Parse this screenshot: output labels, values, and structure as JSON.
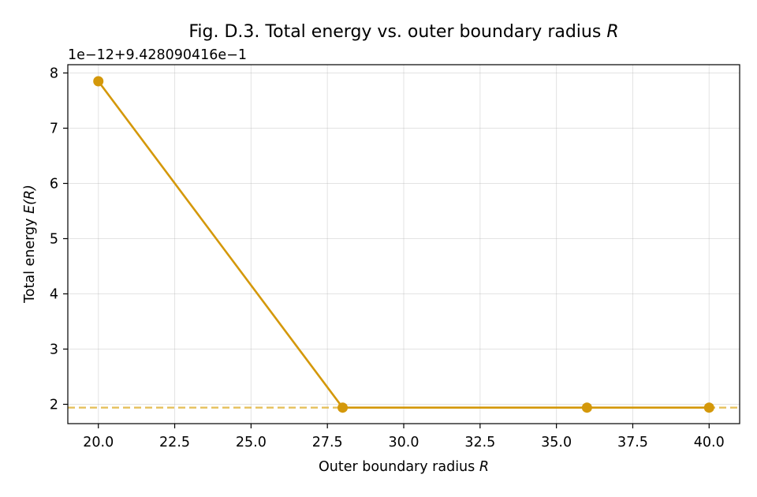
{
  "chart_data": {
    "type": "line",
    "title_text": "Fig. D.3. Total energy vs. outer boundary radius",
    "title_var": "R",
    "xlabel_text": "Outer boundary radius",
    "xlabel_var": "R",
    "ylabel_text": "Total energy",
    "ylabel_var": "E(R)",
    "y_offset_label": "1e−12+9.428090416e−1",
    "xlim": [
      19.0,
      41.0
    ],
    "ylim": [
      1.65,
      8.15
    ],
    "xticks": [
      20.0,
      22.5,
      25.0,
      27.5,
      30.0,
      32.5,
      35.0,
      37.5,
      40.0
    ],
    "xtick_labels": [
      "20.0",
      "22.5",
      "25.0",
      "27.5",
      "30.0",
      "32.5",
      "35.0",
      "37.5",
      "40.0"
    ],
    "yticks": [
      2,
      3,
      4,
      5,
      6,
      7,
      8
    ],
    "ytick_labels": [
      "2",
      "3",
      "4",
      "5",
      "6",
      "7",
      "8"
    ],
    "grid": true,
    "series": [
      {
        "x": [
          20,
          28,
          36,
          40
        ],
        "y": [
          7.85,
          1.94,
          1.94,
          1.94
        ],
        "color": "#d4980a",
        "marker": "circle"
      }
    ],
    "reference_line": {
      "y": 1.94,
      "style": "dashed",
      "color": "#e3b94a"
    }
  }
}
